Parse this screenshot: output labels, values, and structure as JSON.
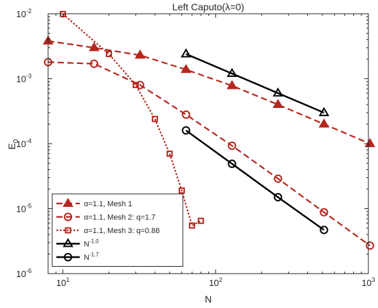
{
  "chart_data": {
    "type": "line",
    "title": "Left Caputo(λ=0)",
    "xlabel": "N",
    "ylabel": "E",
    "ylabel_sub": "0",
    "x_scale": "log",
    "y_scale": "log",
    "xlim": [
      8,
      1000
    ],
    "ylim": [
      1e-06,
      0.01
    ],
    "x_ticks": [
      {
        "base": "10",
        "exp": "1"
      },
      {
        "base": "10",
        "exp": "2"
      },
      {
        "base": "10",
        "exp": "3"
      }
    ],
    "y_ticks": [
      {
        "base": "10",
        "exp": "-6"
      },
      {
        "base": "10",
        "exp": "-5"
      },
      {
        "base": "10",
        "exp": "-4"
      },
      {
        "base": "10",
        "exp": "-3"
      },
      {
        "base": "10",
        "exp": "-2"
      }
    ],
    "grid": false,
    "legend_position": "bottom-left",
    "series": [
      {
        "name_prefix": "α",
        "name_rest": "=1.1, Mesh 1",
        "color": "#b5261e",
        "line_style": "dashed",
        "marker": "triangle",
        "filled": true,
        "x": [
          8,
          16,
          32,
          64,
          128,
          256,
          512,
          1024
        ],
        "y": [
          0.0038,
          0.003,
          0.0023,
          0.00138,
          0.00078,
          0.0004,
          0.0002,
          0.0001
        ]
      },
      {
        "name_prefix": "α",
        "name_rest": "=1.1, Mesh 2: q=1.7",
        "color": "#b5261e",
        "line_style": "dashed",
        "marker": "circle",
        "filled": false,
        "x": [
          8,
          16,
          32,
          64,
          128,
          256,
          512,
          1024
        ],
        "y": [
          0.0018,
          0.0017,
          0.0008,
          0.00028,
          9.3e-05,
          2.9e-05,
          8.8e-06,
          2.7e-06
        ]
      },
      {
        "name_prefix": "α",
        "name_rest": "=1.1, Mesh 3: q=0.88",
        "color": "#b5261e",
        "line_style": "dotted",
        "marker": "square",
        "filled": false,
        "x": [
          10,
          20,
          30,
          40,
          50,
          60,
          70,
          80
        ],
        "y": [
          0.0099,
          0.0024,
          0.0008,
          0.00024,
          7e-05,
          1.9e-05,
          5.5e-06,
          6.5e-06
        ]
      },
      {
        "name_prefix": "N",
        "name_sup": "-1.0",
        "color": "#000000",
        "line_style": "solid",
        "marker": "triangle",
        "filled": false,
        "x": [
          64,
          128,
          256,
          512
        ],
        "y": [
          0.0024,
          0.0012,
          0.0006,
          0.0003
        ]
      },
      {
        "name_prefix": "N",
        "name_sup": "-1.7",
        "color": "#000000",
        "line_style": "solid",
        "marker": "circle",
        "filled": false,
        "x": [
          64,
          128,
          256,
          512
        ],
        "y": [
          0.00016,
          4.9e-05,
          1.5e-05,
          4.7e-06
        ]
      }
    ]
  }
}
